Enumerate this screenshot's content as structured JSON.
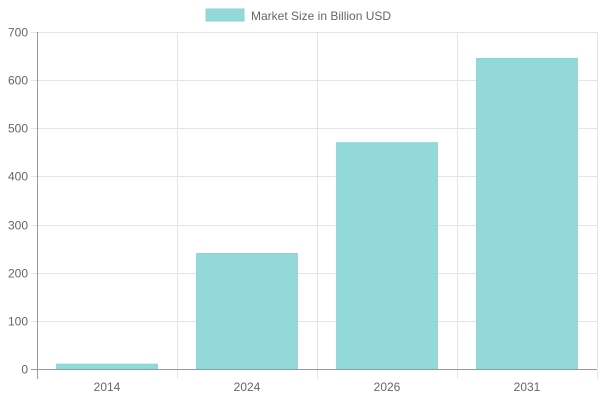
{
  "chart_data": {
    "type": "bar",
    "categories": [
      "2014",
      "2024",
      "2026",
      "2031"
    ],
    "series": [
      {
        "name": "Market Size in Billion USD",
        "values": [
          10,
          240,
          470,
          645
        ]
      }
    ],
    "ylim": [
      0,
      700
    ],
    "yticks": [
      0,
      100,
      200,
      300,
      400,
      500,
      600,
      700
    ],
    "grid": true,
    "legend_position": "top",
    "colors": {
      "bar_fill": "#93d9d9",
      "bar_stroke": "#8dd3d3",
      "grid": "#e5e5e5",
      "axis": "#999999",
      "text": "#666666"
    }
  }
}
